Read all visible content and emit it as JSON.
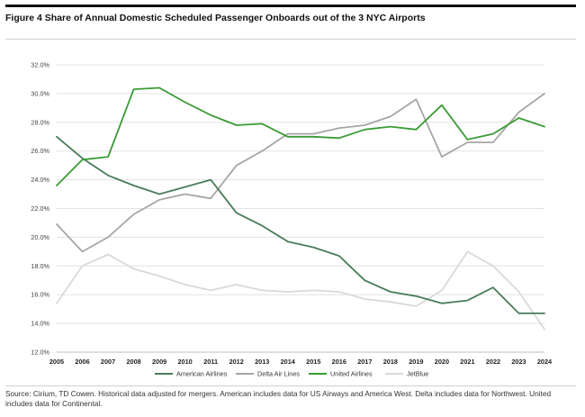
{
  "figure": {
    "title": "Figure 4 Share of Annual Domestic Scheduled Passenger Onboards out of the 3 NYC Airports",
    "source": "Source: Cirium, TD Cowen. Historical data adjusted for mergers. American includes data for US Airways and America West. Delta includes data for Northwest. United includes data for Continental."
  },
  "colors": {
    "american": "#4a7c59",
    "delta": "#a6a6a6",
    "united": "#3a9b35",
    "jetblue": "#d9d9d9",
    "grid": "#e3e3e3"
  },
  "chart_data": {
    "type": "line",
    "title": "",
    "xlabel": "",
    "ylabel": "",
    "x": [
      2005,
      2006,
      2007,
      2008,
      2009,
      2010,
      2011,
      2012,
      2013,
      2014,
      2015,
      2016,
      2017,
      2018,
      2019,
      2020,
      2021,
      2022,
      2023,
      2024
    ],
    "ylim": [
      12.0,
      32.0
    ],
    "yticks": [
      "12.0%",
      "14.0%",
      "16.0%",
      "18.0%",
      "20.0%",
      "22.0%",
      "24.0%",
      "26.0%",
      "28.0%",
      "30.0%",
      "32.0%"
    ],
    "grid": "horizontal",
    "legend_position": "bottom",
    "series": [
      {
        "name": "American Airlines",
        "color": "#4a7c59",
        "values": [
          27.0,
          25.5,
          24.3,
          23.6,
          23.0,
          23.5,
          24.0,
          21.7,
          20.8,
          19.7,
          19.3,
          18.7,
          17.0,
          16.2,
          15.9,
          15.4,
          15.6,
          16.5,
          14.7,
          14.7
        ]
      },
      {
        "name": "Delta Air Lines",
        "color": "#a6a6a6",
        "values": [
          20.9,
          19.0,
          20.0,
          21.6,
          22.6,
          23.0,
          22.7,
          25.0,
          26.0,
          27.2,
          27.2,
          27.6,
          27.8,
          28.4,
          29.6,
          25.6,
          26.6,
          26.6,
          28.7,
          30.0
        ]
      },
      {
        "name": "United Airlines",
        "color": "#3a9b35",
        "values": [
          23.6,
          25.4,
          25.6,
          30.3,
          30.4,
          29.4,
          28.5,
          27.8,
          27.9,
          27.0,
          27.0,
          26.9,
          27.5,
          27.7,
          27.5,
          29.2,
          26.8,
          27.2,
          28.3,
          27.7
        ]
      },
      {
        "name": "JetBlue",
        "color": "#d9d9d9",
        "values": [
          15.4,
          18.0,
          18.8,
          17.8,
          17.3,
          16.7,
          16.3,
          16.7,
          16.3,
          16.2,
          16.3,
          16.2,
          15.7,
          15.5,
          15.2,
          16.3,
          19.0,
          18.0,
          16.2,
          13.6
        ]
      }
    ]
  }
}
